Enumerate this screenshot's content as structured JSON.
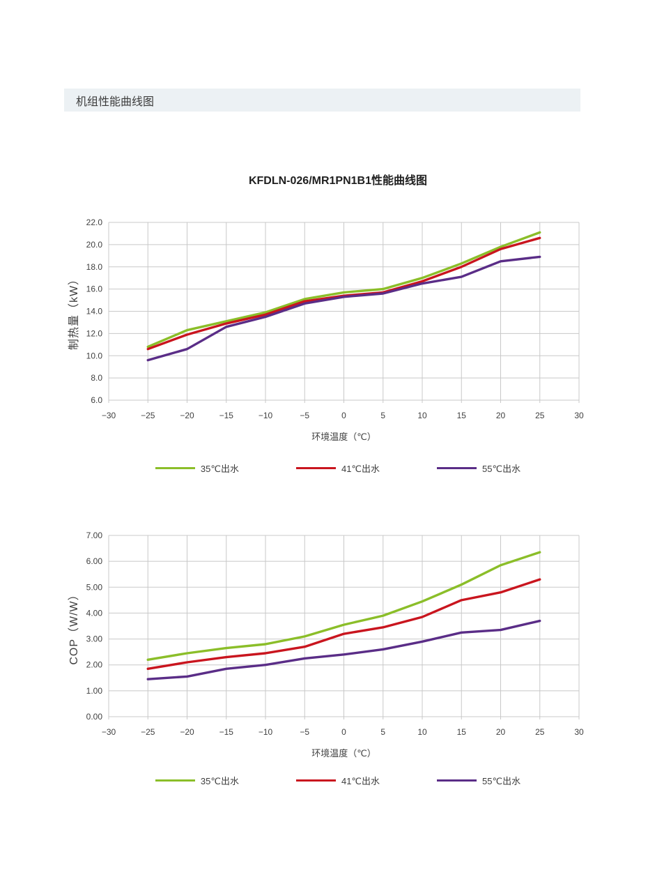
{
  "page": {
    "section_header": "机组性能曲线图"
  },
  "colors": {
    "header_band_bg": "#ECF1F4",
    "grid_line": "#C8C8C8",
    "axis_text": "#3F3F3F"
  },
  "chart_data": [
    {
      "type": "line",
      "title": "KFDLN-026/MR1PN1B1性能曲线图",
      "xlabel": "环境温度（℃）",
      "ylabel": "制热量（kW）",
      "xlim": [
        -30,
        30
      ],
      "x_tick_step": 5,
      "ylim": [
        6,
        22
      ],
      "y_tick_step": 2,
      "y_tick_decimals": 1,
      "grid": true,
      "legend_position": "bottom",
      "x": [
        -25,
        -20,
        -15,
        -10,
        -5,
        0,
        5,
        10,
        15,
        20,
        25
      ],
      "series": [
        {
          "name": "35℃出水",
          "color": "#8BBE29",
          "values": [
            10.8,
            12.3,
            13.1,
            13.9,
            15.1,
            15.7,
            16.0,
            17.0,
            18.3,
            19.8,
            21.1
          ]
        },
        {
          "name": "41℃出水",
          "color": "#C9151E",
          "values": [
            10.6,
            11.9,
            12.9,
            13.7,
            14.9,
            15.4,
            15.7,
            16.7,
            18.0,
            19.6,
            20.6
          ]
        },
        {
          "name": "55℃出水",
          "color": "#5A2D87",
          "values": [
            9.6,
            10.6,
            12.6,
            13.5,
            14.7,
            15.3,
            15.6,
            16.5,
            17.1,
            18.5,
            18.9
          ]
        }
      ]
    },
    {
      "type": "line",
      "title": "",
      "xlabel": "环境温度（℃）",
      "ylabel": "COP（W/W）",
      "xlim": [
        -30,
        30
      ],
      "x_tick_step": 5,
      "ylim": [
        0,
        7
      ],
      "y_tick_step": 1,
      "y_tick_decimals": 2,
      "grid": true,
      "legend_position": "bottom",
      "x": [
        -25,
        -20,
        -15,
        -10,
        -5,
        0,
        5,
        10,
        15,
        20,
        25
      ],
      "series": [
        {
          "name": "35℃出水",
          "color": "#8BBE29",
          "values": [
            2.2,
            2.45,
            2.65,
            2.8,
            3.1,
            3.55,
            3.9,
            4.45,
            5.1,
            5.85,
            6.35
          ]
        },
        {
          "name": "41℃出水",
          "color": "#C9151E",
          "values": [
            1.85,
            2.1,
            2.3,
            2.45,
            2.7,
            3.2,
            3.45,
            3.85,
            4.5,
            4.8,
            5.3
          ]
        },
        {
          "name": "55℃出水",
          "color": "#5A2D87",
          "values": [
            1.45,
            1.55,
            1.85,
            2.0,
            2.25,
            2.4,
            2.6,
            2.9,
            3.25,
            3.35,
            3.7
          ]
        }
      ]
    }
  ]
}
